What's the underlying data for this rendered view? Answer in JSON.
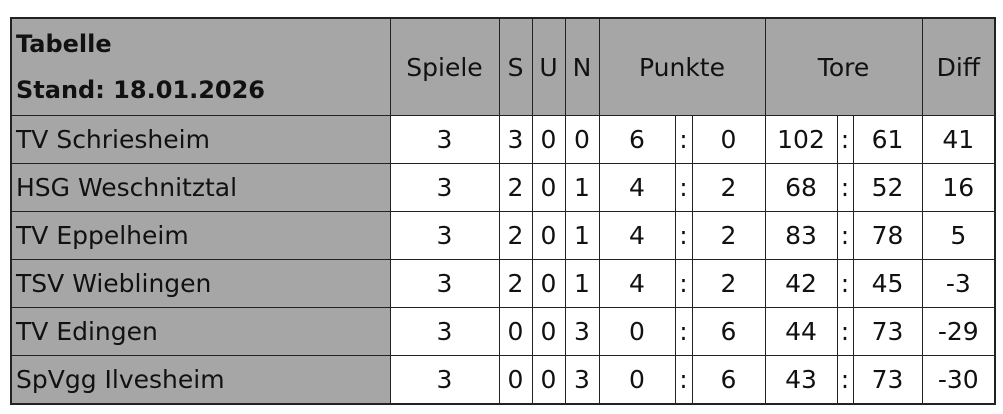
{
  "header": {
    "title": "Tabelle",
    "stand": "Stand: 18.01.2026",
    "columns": {
      "spiele": "Spiele",
      "s": "S",
      "u": "U",
      "n": "N",
      "punkte": "Punkte",
      "tore": "Tore",
      "diff": "Diff"
    }
  },
  "rows": [
    {
      "team": "TV Schriesheim",
      "spiele": "3",
      "s": "3",
      "u": "0",
      "n": "0",
      "p1": "6",
      "p2": "0",
      "t1": "102",
      "t2": "61",
      "diff": "41"
    },
    {
      "team": "HSG Weschnitztal",
      "spiele": "3",
      "s": "2",
      "u": "0",
      "n": "1",
      "p1": "4",
      "p2": "2",
      "t1": "68",
      "t2": "52",
      "diff": "16"
    },
    {
      "team": "TV Eppelheim",
      "spiele": "3",
      "s": "2",
      "u": "0",
      "n": "1",
      "p1": "4",
      "p2": "2",
      "t1": "83",
      "t2": "78",
      "diff": "5"
    },
    {
      "team": "TSV Wieblingen",
      "spiele": "3",
      "s": "2",
      "u": "0",
      "n": "1",
      "p1": "4",
      "p2": "2",
      "t1": "42",
      "t2": "45",
      "diff": "-3"
    },
    {
      "team": "TV Edingen",
      "spiele": "3",
      "s": "0",
      "u": "0",
      "n": "3",
      "p1": "0",
      "p2": "6",
      "t1": "44",
      "t2": "73",
      "diff": "-29"
    },
    {
      "team": "SpVgg Ilvesheim",
      "spiele": "3",
      "s": "0",
      "u": "0",
      "n": "3",
      "p1": "0",
      "p2": "6",
      "t1": "43",
      "t2": "73",
      "diff": "-30"
    }
  ],
  "separator": ":",
  "colors": {
    "header_bg": "#a6a6a6",
    "border": "#222222"
  }
}
